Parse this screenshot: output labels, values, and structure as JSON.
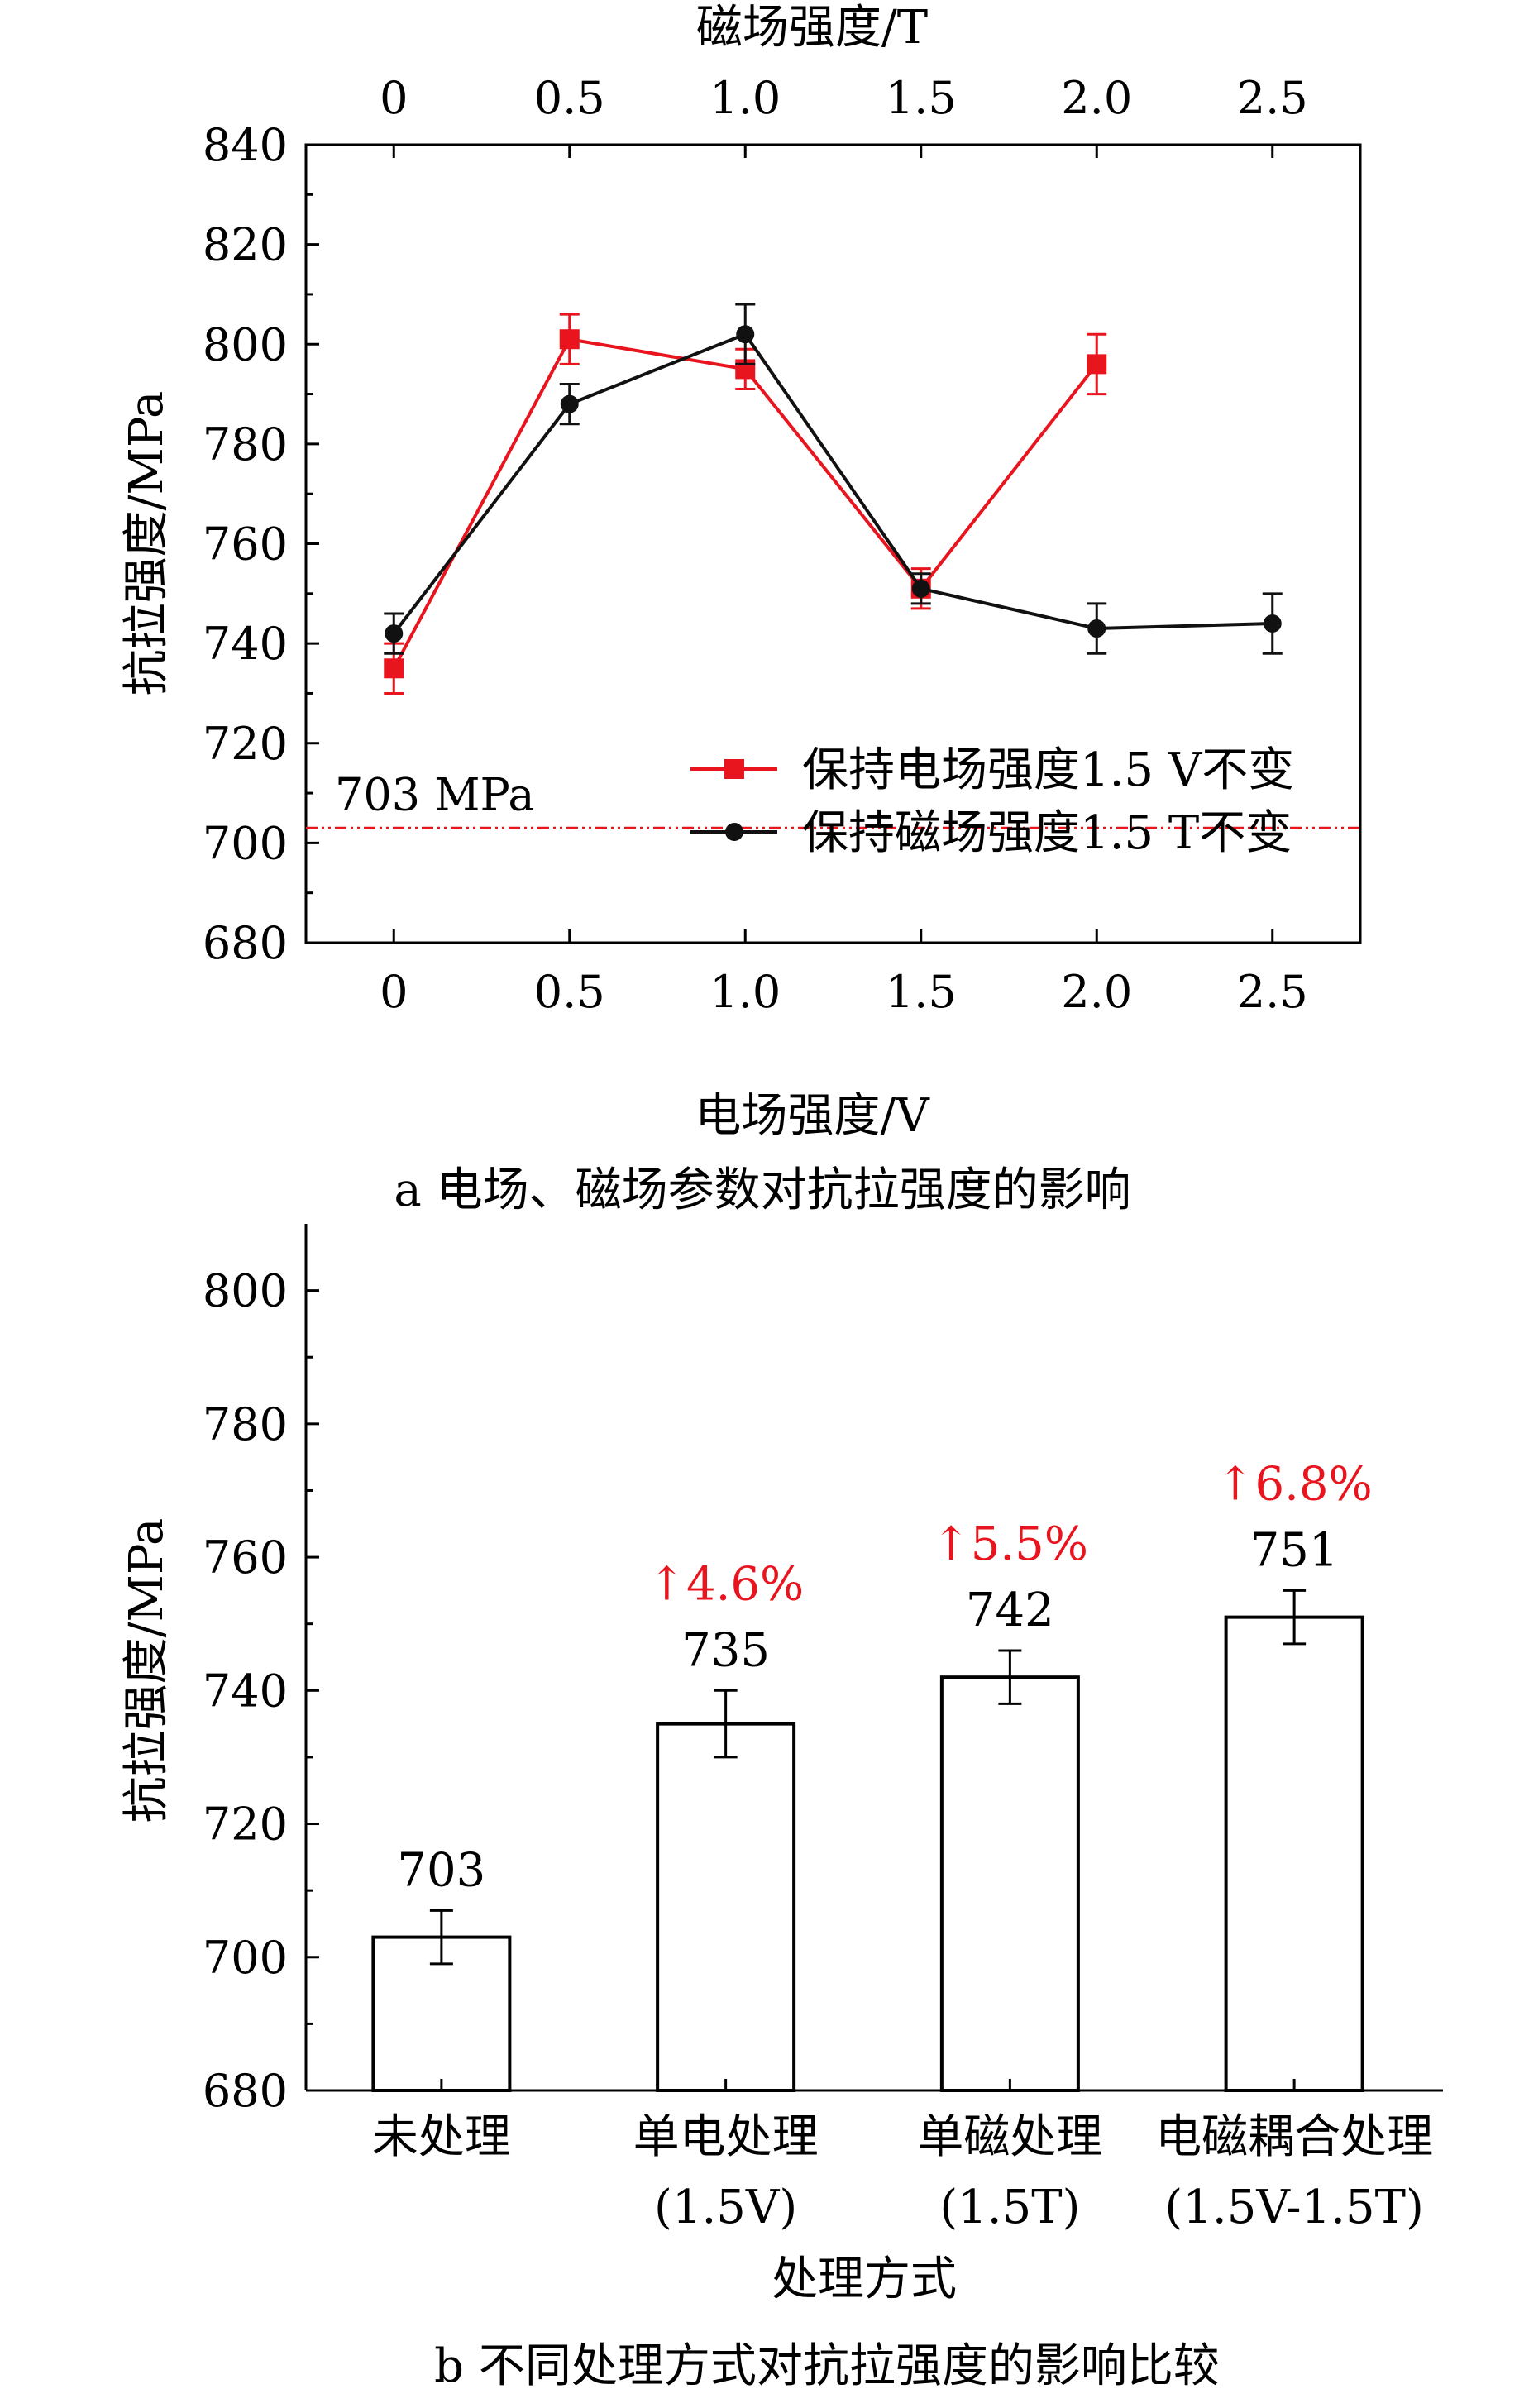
{
  "colors": {
    "red": "#e8141e",
    "black": "#111111",
    "ref_line": "#e8141e"
  },
  "chart_data": [
    {
      "type": "line",
      "caption": "a  电场、磁场参数对抗拉强度的影响",
      "xlabel_bottom": "电场强度/V",
      "xlabel_top": "磁场强度/T",
      "ylabel": "抗拉强度/MPa",
      "ylim": [
        680,
        840
      ],
      "yticks": [
        680,
        700,
        720,
        740,
        760,
        780,
        800,
        820,
        840
      ],
      "xlim": [
        -0.25,
        2.75
      ],
      "xtick_labels": [
        "0",
        "0.5",
        "1.0",
        "1.5",
        "2.0",
        "2.5"
      ],
      "xticks": [
        0,
        0.5,
        1.0,
        1.5,
        2.0,
        2.5
      ],
      "legend_position": "right, above the reference line",
      "reference_line": {
        "y": 703,
        "label": "703 MPa"
      },
      "series": [
        {
          "name": "保持电场强度1.5 V不变",
          "color": "red",
          "marker": "square",
          "x": [
            0,
            0.5,
            1.0,
            1.5,
            2.0
          ],
          "y": [
            735,
            801,
            795,
            751,
            796
          ],
          "err": [
            5,
            5,
            4,
            4,
            6
          ]
        },
        {
          "name": "保持磁场强度1.5 T不变",
          "color": "black",
          "marker": "circle",
          "x": [
            0,
            0.5,
            1.0,
            1.5,
            2.0,
            2.5
          ],
          "y": [
            742,
            788,
            802,
            751,
            743,
            744
          ],
          "err": [
            4,
            4,
            6,
            3,
            5,
            6
          ]
        }
      ]
    },
    {
      "type": "bar",
      "caption": "b  不同处理方式对抗拉强度的影响比较",
      "xlabel": "处理方式",
      "ylabel": "抗拉强度/MPa",
      "ylim": [
        680,
        810
      ],
      "yticks": [
        680,
        700,
        720,
        740,
        760,
        780,
        800
      ],
      "categories": [
        {
          "line1": "未处理",
          "line2": ""
        },
        {
          "line1": "单电处理",
          "line2": "(1.5V)"
        },
        {
          "line1": "单磁处理",
          "line2": "(1.5T)"
        },
        {
          "line1": "电磁耦合处理",
          "line2": "(1.5V-1.5T)"
        }
      ],
      "values": [
        703,
        735,
        742,
        751
      ],
      "err": [
        4,
        5,
        4,
        4
      ],
      "value_labels": [
        "703",
        "735",
        "742",
        "751"
      ],
      "increase_labels": [
        "",
        "↑4.6%",
        "↑5.5%",
        "↑6.8%"
      ]
    }
  ]
}
